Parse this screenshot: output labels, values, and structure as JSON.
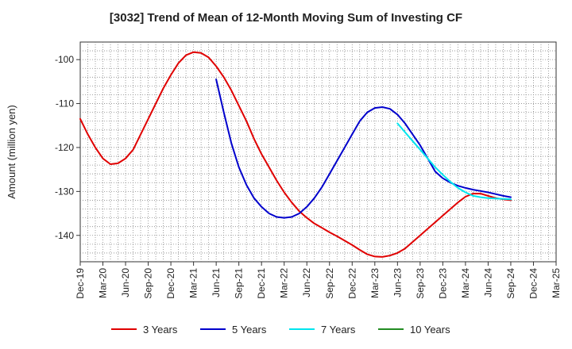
{
  "chart_data": {
    "type": "line",
    "title": "[3032]  Trend of Mean of 12-Month Moving Sum of Investing CF",
    "xlabel": "",
    "ylabel": "Amount (million yen)",
    "ylim": [
      -146,
      -96
    ],
    "yticks": [
      -100,
      -110,
      -120,
      -130,
      -140
    ],
    "grid": true,
    "legend_position": "bottom",
    "categories": [
      "Dec-19",
      "Mar-20",
      "Jun-20",
      "Sep-20",
      "Dec-20",
      "Mar-21",
      "Jun-21",
      "Sep-21",
      "Dec-21",
      "Mar-22",
      "Jun-22",
      "Sep-22",
      "Dec-22",
      "Mar-23",
      "Jun-23",
      "Sep-23",
      "Dec-23",
      "Mar-24",
      "Jun-24",
      "Sep-24",
      "Dec-24",
      "Mar-25"
    ],
    "x_unit": "month index (0 = Dec-19, 3 per quarter tick, 63 = Mar-25)",
    "x_max": 63,
    "series": [
      {
        "name": "3 Years",
        "color": "#e00000",
        "x": [
          0,
          1,
          2,
          3,
          4,
          5,
          6,
          7,
          8,
          9,
          10,
          11,
          12,
          13,
          14,
          15,
          16,
          17,
          18,
          19,
          20,
          21,
          22,
          23,
          24,
          25,
          26,
          27,
          28,
          29,
          30,
          31,
          32,
          33,
          34,
          35,
          36,
          37,
          38,
          39,
          40,
          41,
          42,
          43,
          44,
          45,
          46,
          47,
          48,
          49,
          50,
          51,
          52,
          53,
          54,
          55,
          56,
          57
        ],
        "values": [
          -113.5,
          -117,
          -120,
          -122.5,
          -123.8,
          -123.6,
          -122.5,
          -120.5,
          -117,
          -113.5,
          -110,
          -106.5,
          -103.5,
          -100.8,
          -99,
          -98.3,
          -98.5,
          -99.5,
          -101.5,
          -104,
          -107,
          -110.5,
          -114,
          -118,
          -121.5,
          -124.5,
          -127.5,
          -130.2,
          -132.5,
          -134.5,
          -136,
          -137.3,
          -138.3,
          -139.3,
          -140.2,
          -141.2,
          -142.2,
          -143.3,
          -144.3,
          -144.8,
          -144.9,
          -144.6,
          -144,
          -143,
          -141.5,
          -140,
          -138.5,
          -137,
          -135.5,
          -134,
          -132.5,
          -131.2,
          -130.5,
          -130.5,
          -131,
          -131.5,
          -131.8,
          -132
        ]
      },
      {
        "name": "5 Years",
        "color": "#0000cc",
        "x": [
          18,
          19,
          20,
          21,
          22,
          23,
          24,
          25,
          26,
          27,
          28,
          29,
          30,
          31,
          32,
          33,
          34,
          35,
          36,
          37,
          38,
          39,
          40,
          41,
          42,
          43,
          44,
          45,
          46,
          47,
          48,
          49,
          50,
          51,
          52,
          53,
          54,
          55,
          56,
          57
        ],
        "values": [
          -104.5,
          -112,
          -119,
          -124.5,
          -128.5,
          -131.5,
          -133.5,
          -135,
          -135.8,
          -136,
          -135.8,
          -135,
          -133.5,
          -131.5,
          -129,
          -126,
          -123,
          -120,
          -117,
          -114,
          -112,
          -111,
          -110.8,
          -111.2,
          -112.5,
          -114.5,
          -117,
          -119.5,
          -122.5,
          -125.5,
          -127,
          -128,
          -128.7,
          -129.2,
          -129.6,
          -129.9,
          -130.2,
          -130.6,
          -131,
          -131.3
        ]
      },
      {
        "name": "7 Years",
        "color": "#00e5ee",
        "x": [
          42,
          43,
          44,
          45,
          46,
          47,
          48,
          49,
          50,
          51,
          52,
          53,
          54,
          55,
          56,
          57
        ],
        "values": [
          -114.5,
          -116.5,
          -118.5,
          -120.5,
          -122.5,
          -124.5,
          -126.2,
          -127.8,
          -129.2,
          -130.2,
          -131,
          -131.3,
          -131.5,
          -131.6,
          -131.7,
          -131.8
        ]
      },
      {
        "name": "10 Years",
        "color": "#228B22",
        "x": [],
        "values": []
      }
    ]
  }
}
